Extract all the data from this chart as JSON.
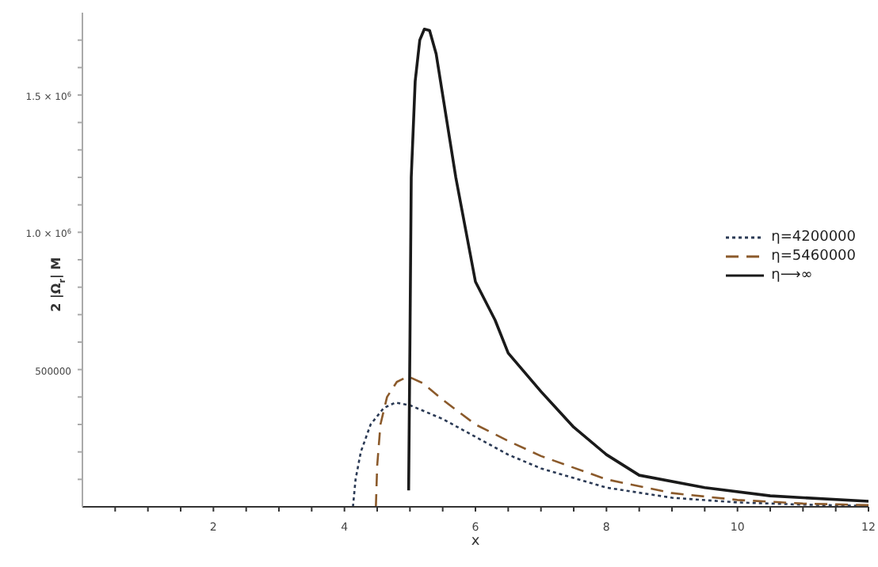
{
  "chart_data": {
    "type": "line",
    "xlabel": "x",
    "ylabel": "2 |Ω$_{r}$| M",
    "xlim": [
      0,
      12
    ],
    "ylim": [
      0,
      1800000
    ],
    "xticks": [
      {
        "value": 0.5,
        "label": null
      },
      {
        "value": 1,
        "label": null
      },
      {
        "value": 1.5,
        "label": null
      },
      2,
      {
        "value": 2.5,
        "label": null
      },
      {
        "value": 3,
        "label": null
      },
      {
        "value": 3.5,
        "label": null
      },
      4,
      {
        "value": 4.5,
        "label": null
      },
      {
        "value": 5,
        "label": null
      },
      {
        "value": 5.5,
        "label": null
      },
      6,
      {
        "value": 6.5,
        "label": null
      },
      {
        "value": 7,
        "label": null
      },
      {
        "value": 7.5,
        "label": null
      },
      8,
      {
        "value": 8.5,
        "label": null
      },
      {
        "value": 9,
        "label": null
      },
      {
        "value": 9.5,
        "label": null
      },
      10,
      {
        "value": 10.5,
        "label": null
      },
      {
        "value": 11,
        "label": null
      },
      {
        "value": 11.5,
        "label": null
      },
      12
    ],
    "yticks": [
      {
        "value": 100000,
        "label": null
      },
      {
        "value": 200000,
        "label": null
      },
      {
        "value": 300000,
        "label": null
      },
      {
        "value": 400000,
        "label": null
      },
      500000,
      {
        "value": 600000,
        "label": null
      },
      {
        "value": 700000,
        "label": null
      },
      {
        "value": 800000,
        "label": null
      },
      {
        "value": 900000,
        "label": null
      },
      {
        "value": 1000000,
        "label": "1.0 × 10$^{6}$"
      },
      {
        "value": 1100000,
        "label": null
      },
      {
        "value": 1200000,
        "label": null
      },
      {
        "value": 1300000,
        "label": null
      },
      {
        "value": 1400000,
        "label": null
      },
      {
        "value": 1500000,
        "label": "1.5 × 10$^{6}$"
      },
      {
        "value": 1600000,
        "label": null
      },
      {
        "value": 1700000,
        "label": null
      }
    ],
    "legend": "right",
    "marker": "none",
    "series": [
      {
        "name": "η=4200000",
        "color": "#2b3a55",
        "line_style": "dotted",
        "x": [
          4.13,
          4.17,
          4.25,
          4.4,
          4.6,
          4.78,
          5,
          5.5,
          6,
          6.5,
          7,
          8,
          9,
          10,
          11,
          12
        ],
        "values": [
          0,
          100000,
          200000,
          300000,
          360000,
          380000,
          370000,
          320000,
          255000,
          190000,
          140000,
          70000,
          33000,
          16000,
          8000,
          3000
        ]
      },
      {
        "name": "η=5460000",
        "color": "#8b5a2b",
        "line_style": "dashed",
        "x": [
          4.48,
          4.5,
          4.55,
          4.65,
          4.8,
          4.97,
          5.2,
          5.5,
          6,
          6.5,
          7,
          8,
          9,
          10,
          11,
          12
        ],
        "values": [
          0,
          150000,
          300000,
          400000,
          455000,
          475000,
          450000,
          390000,
          300000,
          240000,
          185000,
          100000,
          50000,
          25000,
          12000,
          6000
        ]
      },
      {
        "name": "η⟶∞",
        "color": "#1a1a1a",
        "line_style": "solid",
        "x": [
          4.98,
          5,
          5.02,
          5.08,
          5.15,
          5.22,
          5.3,
          5.4,
          5.5,
          5.7,
          6,
          6.3,
          6.5,
          7,
          7.5,
          8,
          8.5,
          9.5,
          10.5,
          12
        ],
        "values": [
          60000,
          600000,
          1200000,
          1550000,
          1700000,
          1740000,
          1735000,
          1650000,
          1500000,
          1200000,
          820000,
          680000,
          560000,
          420000,
          290000,
          190000,
          115000,
          70000,
          40000,
          20000
        ]
      }
    ]
  }
}
